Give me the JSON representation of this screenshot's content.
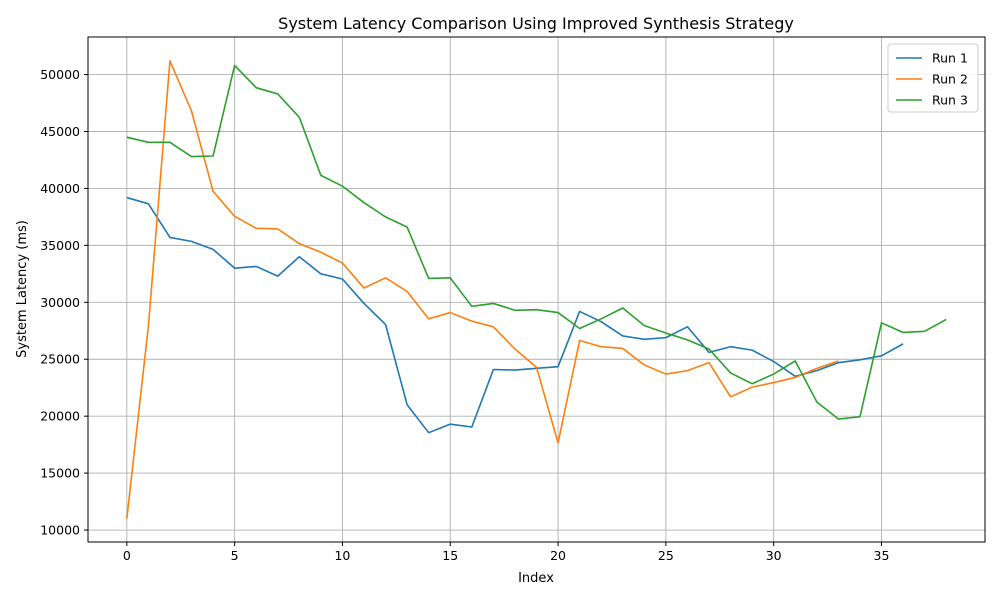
{
  "chart_data": {
    "type": "line",
    "title": "System Latency Comparison Using Improved Synthesis Strategy",
    "xlabel": "Index",
    "ylabel": "System Latency (ms)",
    "xlim": [
      -1.8,
      39.8
    ],
    "ylim": [
      8950,
      53300
    ],
    "xticks": [
      0,
      5,
      10,
      15,
      20,
      25,
      30,
      35
    ],
    "yticks": [
      10000,
      15000,
      20000,
      25000,
      30000,
      35000,
      40000,
      45000,
      50000
    ],
    "grid": true,
    "legend_position": "top-right",
    "series": [
      {
        "name": "Run 1",
        "color": "#1f77b4",
        "x": [
          0,
          1,
          2,
          3,
          4,
          5,
          6,
          7,
          8,
          9,
          10,
          11,
          12,
          13,
          14,
          15,
          16,
          17,
          18,
          19,
          20,
          21,
          22,
          23,
          24,
          25,
          26,
          27,
          28,
          29,
          30,
          31,
          32,
          33,
          34,
          35,
          36
        ],
        "values": [
          39200,
          38650,
          35700,
          35350,
          34650,
          33000,
          33150,
          32300,
          34000,
          32500,
          32050,
          29900,
          28050,
          21000,
          18550,
          19300,
          19050,
          24100,
          24050,
          24200,
          24350,
          29200,
          28300,
          27050,
          26750,
          26900,
          27850,
          25600,
          26100,
          25800,
          24800,
          23500,
          24000,
          24700,
          24950,
          25300,
          26350
        ]
      },
      {
        "name": "Run 2",
        "color": "#ff7f0e",
        "x": [
          0,
          1,
          2,
          3,
          4,
          5,
          6,
          7,
          8,
          9,
          10,
          11,
          12,
          13,
          14,
          15,
          16,
          17,
          18,
          19,
          20,
          21,
          22,
          23,
          24,
          25,
          26,
          27,
          28,
          29,
          30,
          31,
          32,
          33
        ],
        "values": [
          11000,
          27900,
          51200,
          46800,
          39750,
          37550,
          36500,
          36450,
          35150,
          34400,
          33450,
          31250,
          32150,
          30950,
          28550,
          29100,
          28350,
          27850,
          25900,
          24300,
          17650,
          26650,
          26100,
          25950,
          24500,
          23700,
          24000,
          24700,
          21700,
          22550,
          22950,
          23400,
          24200,
          24850
        ]
      },
      {
        "name": "Run 3",
        "color": "#2ca02c",
        "x": [
          0,
          1,
          2,
          3,
          4,
          5,
          6,
          7,
          8,
          9,
          10,
          11,
          12,
          13,
          14,
          15,
          16,
          17,
          18,
          19,
          20,
          21,
          22,
          23,
          24,
          25,
          26,
          27,
          28,
          29,
          30,
          31,
          32,
          33,
          34,
          35,
          36,
          37,
          38
        ],
        "values": [
          44500,
          44050,
          44050,
          42800,
          42850,
          50800,
          48850,
          48300,
          46250,
          41150,
          40200,
          38750,
          37500,
          36600,
          32100,
          32150,
          29650,
          29900,
          29300,
          29350,
          29100,
          27700,
          28550,
          29500,
          27950,
          27300,
          26700,
          25900,
          23800,
          22850,
          23700,
          24850,
          21250,
          19750,
          19950,
          28200,
          27350,
          27450,
          28500
        ]
      }
    ]
  }
}
